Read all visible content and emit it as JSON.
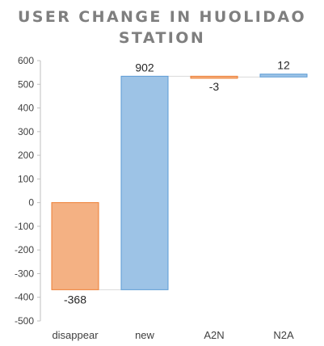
{
  "chart_data": {
    "type": "bar",
    "subtype": "waterfall",
    "title_lines": [
      "USER CHANGE IN HUOLIDAO",
      "STATION"
    ],
    "categories": [
      "disappear",
      "new",
      "A2N",
      "N2A"
    ],
    "values": [
      -368,
      902,
      -3,
      12
    ],
    "bar_ranges": [
      [
        0,
        -368
      ],
      [
        -368,
        534
      ],
      [
        534,
        531
      ],
      [
        531,
        543
      ]
    ],
    "data_labels": [
      "-368",
      "902",
      "-3",
      "12"
    ],
    "ylim": [
      -500,
      600
    ],
    "ytick_labels": [
      "600",
      "500",
      "400",
      "300",
      "200",
      "100",
      "0",
      "-100",
      "-200",
      "-300",
      "-400",
      "-500"
    ],
    "xlabel": "",
    "ylabel": "",
    "grid": false,
    "colors": {
      "negative": "#f4b183",
      "negative_edge": "#ed7d31",
      "positive": "#9dc3e6",
      "positive_edge": "#5b9bd5",
      "axis": "#bfbfbf",
      "connector": "#d9d9d9"
    }
  }
}
